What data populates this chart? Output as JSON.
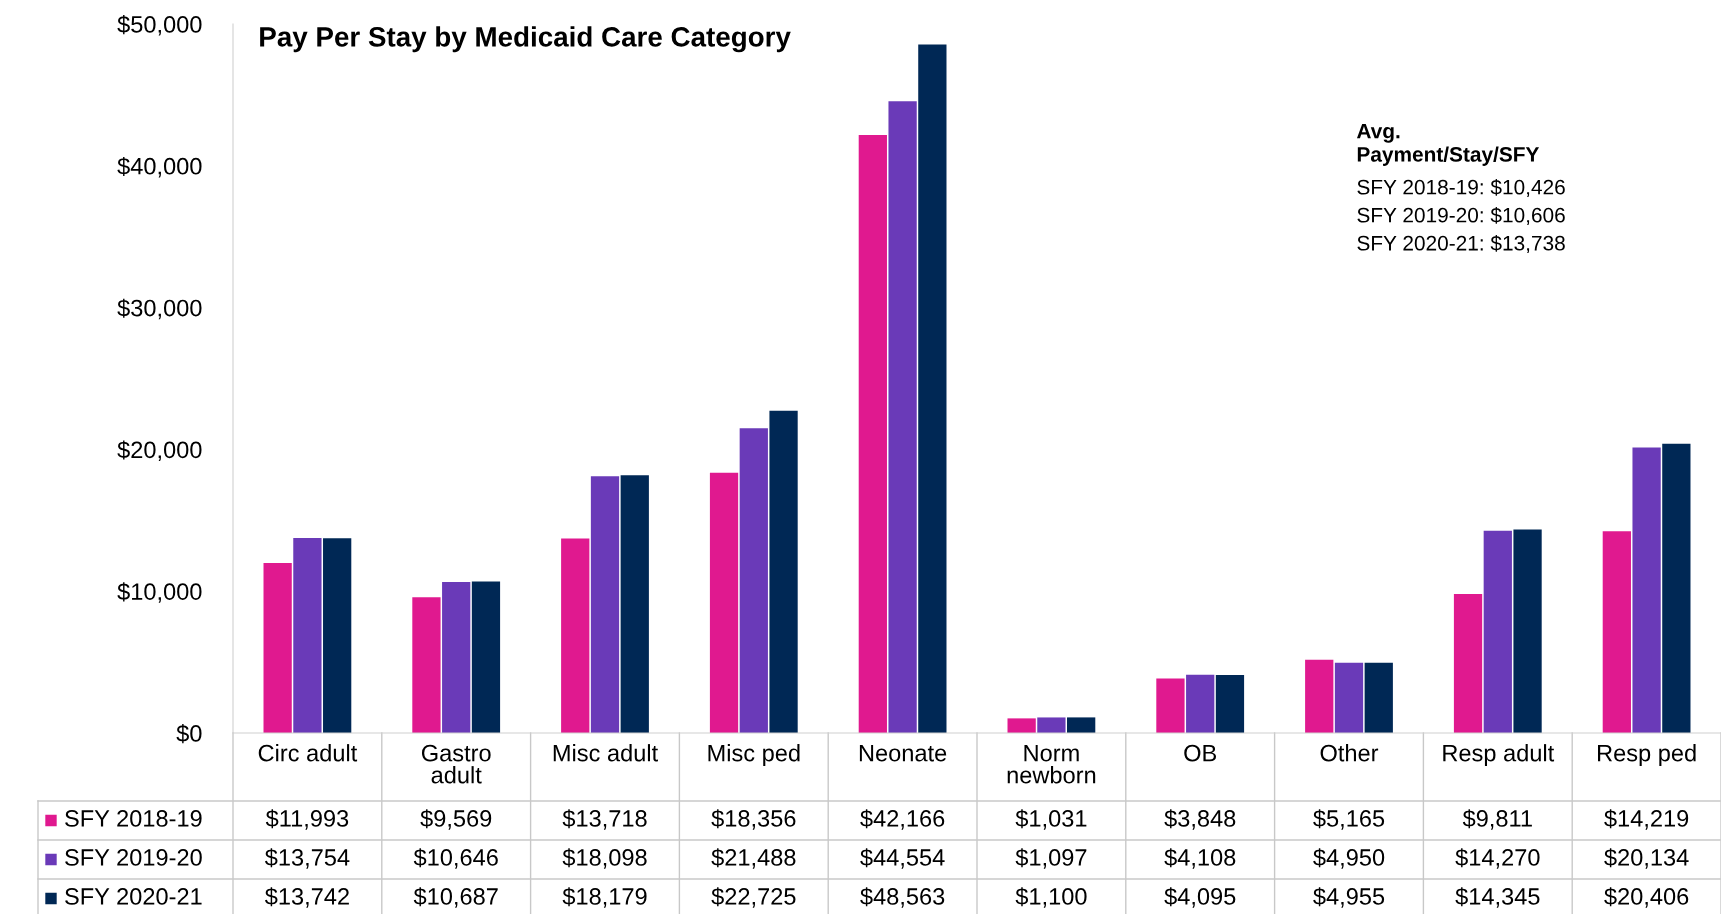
{
  "chart_data": {
    "type": "bar",
    "title": "Pay Per Stay by Medicaid Care Category",
    "categories": [
      "Circ adult",
      "Gastro\nadult",
      "Misc adult",
      "Misc ped",
      "Neonate",
      "Norm\nnewborn",
      "OB",
      "Other",
      "Resp adult",
      "Resp ped"
    ],
    "series": [
      {
        "name": "SFY 2018-19",
        "color": "#e0198f",
        "values": [
          11993,
          9569,
          13718,
          18356,
          42166,
          1031,
          3848,
          5165,
          9811,
          14219
        ],
        "value_labels": [
          "$11,993",
          "$9,569",
          "$13,718",
          "$18,356",
          "$42,166",
          "$1,031",
          "$3,848",
          "$5,165",
          "$9,811",
          "$14,219"
        ]
      },
      {
        "name": "SFY 2019-20",
        "color": "#6a3ab8",
        "values": [
          13754,
          10646,
          18098,
          21488,
          44554,
          1097,
          4108,
          4950,
          14270,
          20134
        ],
        "value_labels": [
          "$13,754",
          "$10,646",
          "$18,098",
          "$21,488",
          "$44,554",
          "$1,097",
          "$4,108",
          "$4,950",
          "$14,270",
          "$20,134"
        ]
      },
      {
        "name": "SFY 2020-21",
        "color": "#002855",
        "values": [
          13742,
          10687,
          18179,
          22725,
          48563,
          1100,
          4095,
          4955,
          14345,
          20406
        ],
        "value_labels": [
          "$13,742",
          "$10,687",
          "$18,179",
          "$22,725",
          "$48,563",
          "$1,100",
          "$4,095",
          "$4,955",
          "$14,345",
          "$20,406"
        ]
      }
    ],
    "ylim": [
      0,
      50000
    ],
    "yticks": [
      {
        "value": 0,
        "label": "$0"
      },
      {
        "value": 10000,
        "label": "$10,000"
      },
      {
        "value": 20000,
        "label": "$20,000"
      },
      {
        "value": 30000,
        "label": "$30,000"
      },
      {
        "value": 40000,
        "label": "$40,000"
      },
      {
        "value": 50000,
        "label": "$50,000"
      }
    ],
    "grid": false,
    "legend": "bottom left",
    "annotations": [
      "Avg.\nPayment/Stay/SFY",
      "SFY 2018-19: $10,426",
      "SFY 2019-20: $10,606",
      "SFY 2020-21: $13,738"
    ]
  }
}
